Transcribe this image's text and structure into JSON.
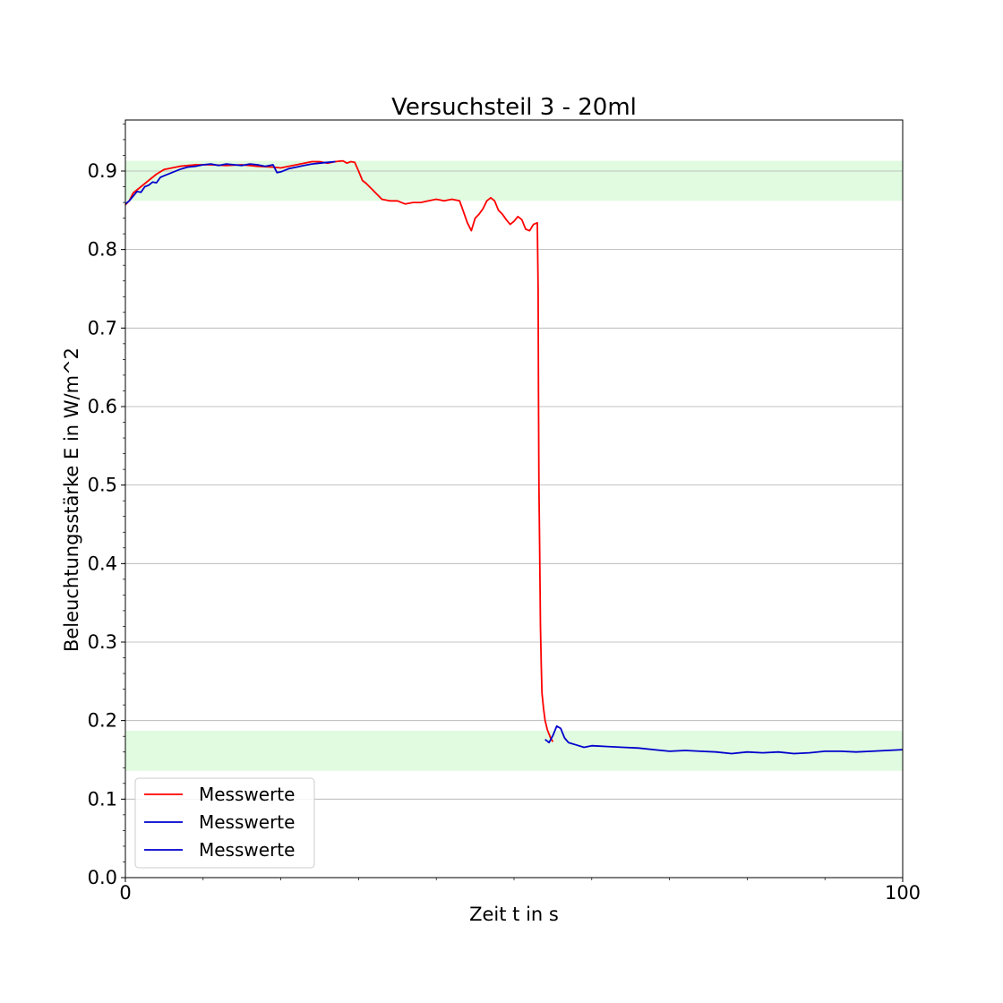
{
  "chart_data": {
    "type": "line",
    "title": "Versuchsteil 3 - 20ml",
    "xlabel": "Zeit t in s",
    "ylabel": "Beleuchtungsstärke E in W/m^2",
    "xlim": [
      0,
      100
    ],
    "ylim": [
      0,
      0.965
    ],
    "xticks": [
      0,
      100
    ],
    "xtick_labels": [
      "0",
      "100"
    ],
    "yticks": [
      0.0,
      0.1,
      0.2,
      0.3,
      0.4,
      0.5,
      0.6,
      0.7,
      0.8,
      0.9
    ],
    "ytick_labels": [
      "0.0",
      "0.1",
      "0.2",
      "0.3",
      "0.4",
      "0.5",
      "0.6",
      "0.7",
      "0.8",
      "0.9"
    ],
    "grid": "horizontal",
    "legend_position": "lower-left",
    "bands": [
      {
        "y0": 0.862,
        "y1": 0.913,
        "color": "#e0fbe0"
      },
      {
        "y0": 0.136,
        "y1": 0.187,
        "color": "#e0fbe0"
      }
    ],
    "series": [
      {
        "name": "Messwerte",
        "color": "#ff0000",
        "x": [
          0,
          0.5,
          1,
          2,
          3,
          4,
          5,
          7,
          9,
          11,
          13,
          15,
          17,
          19,
          20,
          21,
          22,
          23,
          24,
          25,
          26,
          27,
          28,
          28.5,
          29,
          29.5,
          30,
          30.5,
          31,
          32,
          33,
          34,
          35,
          36,
          37,
          38,
          39,
          40,
          41,
          42,
          43,
          43.5,
          44,
          44.5,
          45,
          45.5,
          46,
          46.5,
          47,
          47.5,
          48,
          48.5,
          49,
          49.5,
          50,
          50.5,
          51,
          51.5,
          52,
          52.5,
          53,
          53.1,
          53.15,
          53.2,
          53.3,
          53.4,
          53.5,
          53.6,
          53.8,
          54.0,
          54.3,
          54.7,
          55.0
        ],
        "y": [
          0.857,
          0.862,
          0.872,
          0.88,
          0.888,
          0.896,
          0.902,
          0.906,
          0.908,
          0.908,
          0.907,
          0.908,
          0.906,
          0.905,
          0.904,
          0.906,
          0.908,
          0.91,
          0.912,
          0.912,
          0.91,
          0.912,
          0.913,
          0.91,
          0.912,
          0.911,
          0.9,
          0.888,
          0.884,
          0.874,
          0.864,
          0.862,
          0.862,
          0.858,
          0.86,
          0.86,
          0.862,
          0.864,
          0.862,
          0.864,
          0.862,
          0.848,
          0.834,
          0.824,
          0.84,
          0.845,
          0.852,
          0.862,
          0.866,
          0.862,
          0.85,
          0.845,
          0.838,
          0.832,
          0.836,
          0.842,
          0.838,
          0.826,
          0.824,
          0.832,
          0.834,
          0.75,
          0.62,
          0.5,
          0.42,
          0.32,
          0.27,
          0.235,
          0.215,
          0.2,
          0.188,
          0.178,
          0.173
        ]
      },
      {
        "name": "Messwerte",
        "color": "#0000cc",
        "x": [
          0,
          0.5,
          1,
          1.5,
          2,
          2.5,
          3,
          3.5,
          4,
          4.5,
          5,
          6,
          7,
          8,
          9,
          10,
          11,
          12,
          13,
          14,
          15,
          16,
          17,
          18,
          19,
          19.5,
          20,
          21,
          22,
          23,
          24,
          25,
          26,
          27
        ],
        "y": [
          0.858,
          0.862,
          0.868,
          0.874,
          0.873,
          0.88,
          0.882,
          0.886,
          0.885,
          0.892,
          0.894,
          0.898,
          0.902,
          0.905,
          0.906,
          0.908,
          0.909,
          0.907,
          0.909,
          0.908,
          0.907,
          0.909,
          0.908,
          0.906,
          0.908,
          0.898,
          0.899,
          0.903,
          0.905,
          0.907,
          0.909,
          0.91,
          0.911,
          0.912
        ]
      },
      {
        "name": "Messwerte",
        "color": "#0000cc",
        "x": [
          54,
          54.5,
          55,
          55.5,
          56,
          56.5,
          57,
          58,
          59,
          60,
          62,
          64,
          66,
          68,
          70,
          72,
          74,
          76,
          78,
          80,
          82,
          84,
          86,
          88,
          90,
          92,
          94,
          96,
          98,
          100
        ],
        "y": [
          0.176,
          0.172,
          0.181,
          0.193,
          0.19,
          0.178,
          0.172,
          0.169,
          0.166,
          0.168,
          0.167,
          0.166,
          0.165,
          0.163,
          0.161,
          0.162,
          0.161,
          0.16,
          0.158,
          0.16,
          0.159,
          0.16,
          0.158,
          0.159,
          0.161,
          0.161,
          0.16,
          0.161,
          0.162,
          0.163
        ]
      }
    ]
  }
}
